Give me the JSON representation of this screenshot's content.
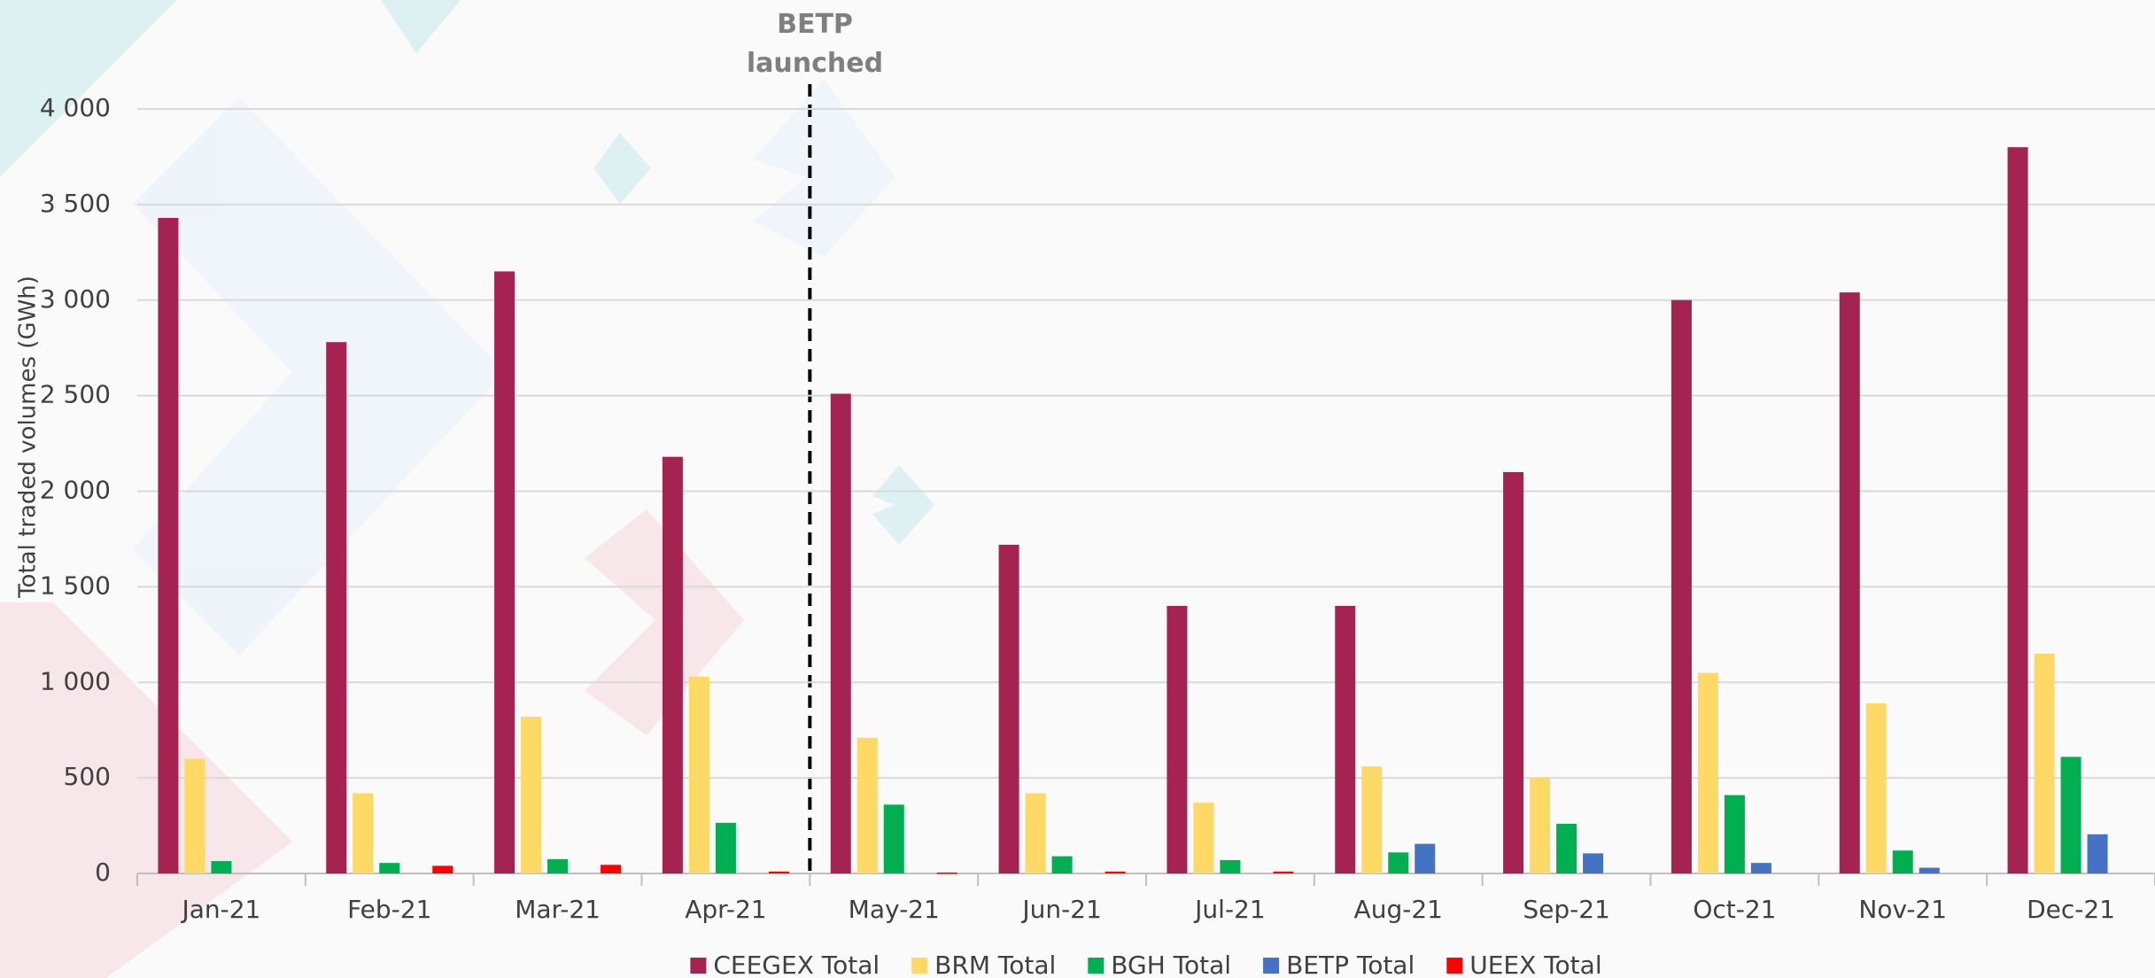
{
  "chart_data": {
    "type": "bar",
    "y_label": "Total traded volumes (GWh)",
    "annotation": "BETP launched",
    "categories": [
      "Jan-21",
      "Feb-21",
      "Mar-21",
      "Apr-21",
      "May-21",
      "Jun-21",
      "Jul-21",
      "Aug-21",
      "Sep-21",
      "Oct-21",
      "Nov-21",
      "Dec-21"
    ],
    "series": [
      {
        "name": "CEEGEX Total",
        "color": "#a52350",
        "values": [
          3430,
          2780,
          3150,
          2180,
          2510,
          1720,
          1400,
          1400,
          2100,
          3000,
          3040,
          3800
        ]
      },
      {
        "name": "BRM Total",
        "color": "#ffd966",
        "values": [
          600,
          420,
          820,
          1030,
          710,
          420,
          370,
          560,
          500,
          1050,
          890,
          1150
        ]
      },
      {
        "name": "BGH Total",
        "color": "#00b050",
        "values": [
          65,
          55,
          75,
          265,
          360,
          90,
          70,
          110,
          260,
          410,
          120,
          610
        ]
      },
      {
        "name": "BETP Total",
        "color": "#4472c4",
        "values": [
          null,
          null,
          null,
          null,
          null,
          null,
          null,
          155,
          105,
          55,
          30,
          205
        ]
      },
      {
        "name": "UEEX Total",
        "color": "#ff0000",
        "values": [
          null,
          40,
          45,
          10,
          5,
          10,
          10,
          null,
          null,
          null,
          null,
          null
        ]
      }
    ],
    "ylim": [
      0,
      4000
    ],
    "yticks": [
      0,
      500,
      {
        "value": 1000,
        "label": "1 000"
      },
      {
        "value": 1500,
        "label": "1 500"
      },
      {
        "value": 2000,
        "label": "2 000"
      },
      {
        "value": 2500,
        "label": "2 500"
      },
      {
        "value": 3000,
        "label": "3 000"
      },
      {
        "value": 3500,
        "label": "3 500"
      },
      {
        "value": 4000,
        "label": "4 000"
      }
    ],
    "grid": true,
    "legend": "bottom"
  }
}
